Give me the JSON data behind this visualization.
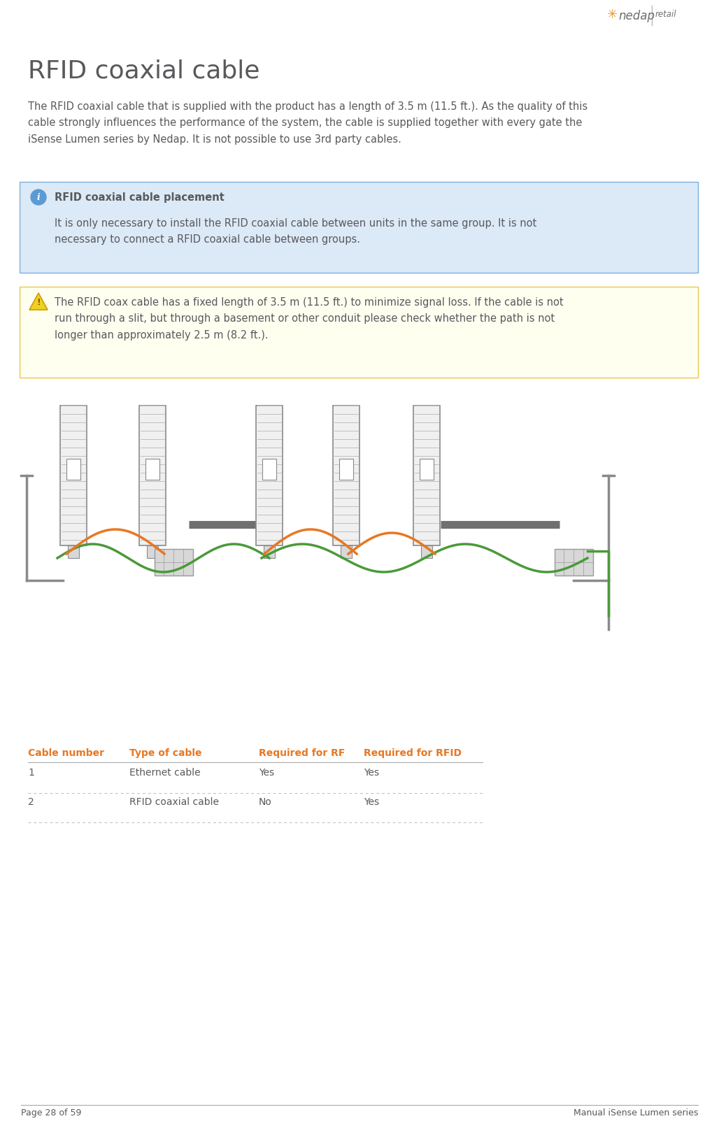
{
  "page_bg": "#ffffff",
  "logo_color": "#f7941d",
  "logo_text_color": "#6d6e71",
  "title": "RFID coaxial cable",
  "title_color": "#58595b",
  "title_fontsize": 26,
  "body_text_1": "The RFID coaxial cable that is supplied with the product has a length of 3.5 m (11.5 ft.). As the quality of this\ncable strongly influences the performance of the system, the cable is supplied together with every gate the\niSense Lumen series by Nedap. It is not possible to use 3rd party cables.",
  "body_color": "#58595b",
  "body_fontsize": 10.5,
  "info_box_bg": "#dce9f7",
  "info_box_border": "#7ab0df",
  "info_box_title": "RFID coaxial cable placement",
  "info_box_icon_color": "#5b9bd5",
  "info_box_text": "It is only necessary to install the RFID coaxial cable between units in the same group. It is not\nnecessary to connect a RFID coaxial cable between groups.",
  "warn_box_bg": "#fffff0",
  "warn_box_border": "#e8c84a",
  "warn_box_text": "The RFID coax cable has a fixed length of 3.5 m (11.5 ft.) to minimize signal loss. If the cable is not\nrun through a slit, but through a basement or other conduit please check whether the path is not\nlonger than approximately 2.5 m (8.2 ft.).",
  "table_header_color": "#e87722",
  "table_header_fontsize": 10,
  "table_body_fontsize": 10,
  "table_headers": [
    "Cable number",
    "Type of cable",
    "Required for RF",
    "Required for RFID"
  ],
  "table_rows": [
    [
      "1",
      "Ethernet cable",
      "Yes",
      "Yes"
    ],
    [
      "2",
      "RFID coaxial cable",
      "No",
      "Yes"
    ]
  ],
  "footer_left": "Page 28 of 59",
  "footer_right": "Manual iSense Lumen series",
  "footer_color": "#58595b",
  "footer_fontsize": 9,
  "footer_line_color": "#a0a0a0",
  "gate_color": "#8a8a8a",
  "gate_fill": "#f0f0f0",
  "gate_stripe_color": "#c0c0c0",
  "cable_orange": "#e87722",
  "cable_green": "#4a9a3a",
  "bracket_color": "#8a8a8a",
  "reader_fill": "#d8d8d8",
  "reader_edge": "#999999",
  "separator_color": "#707070"
}
